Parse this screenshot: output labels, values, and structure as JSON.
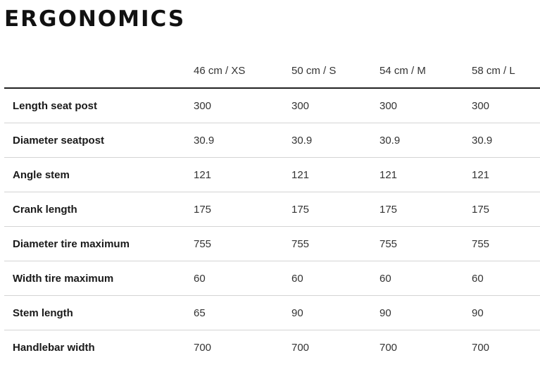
{
  "title": "ERGONOMICS",
  "table": {
    "header_blank": "",
    "sizes": [
      "46 cm / XS",
      "50 cm / S",
      "54 cm / M",
      "58 cm / L"
    ],
    "rows": [
      {
        "label": "Length seat post",
        "values": [
          "300",
          "300",
          "300",
          "300"
        ]
      },
      {
        "label": "Diameter seatpost",
        "values": [
          "30.9",
          "30.9",
          "30.9",
          "30.9"
        ]
      },
      {
        "label": "Angle stem",
        "values": [
          "121",
          "121",
          "121",
          "121"
        ]
      },
      {
        "label": "Crank length",
        "values": [
          "175",
          "175",
          "175",
          "175"
        ]
      },
      {
        "label": "Diameter tire maximum",
        "values": [
          "755",
          "755",
          "755",
          "755"
        ]
      },
      {
        "label": "Width tire maximum",
        "values": [
          "60",
          "60",
          "60",
          "60"
        ]
      },
      {
        "label": "Stem length",
        "values": [
          "65",
          "90",
          "90",
          "90"
        ]
      },
      {
        "label": "Handlebar width",
        "values": [
          "700",
          "700",
          "700",
          "700"
        ]
      }
    ]
  }
}
